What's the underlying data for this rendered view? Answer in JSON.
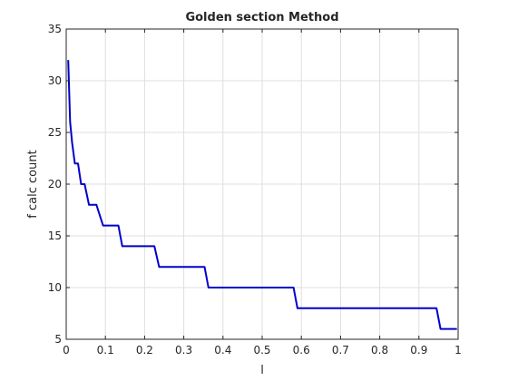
{
  "chart_data": {
    "type": "line",
    "title": "Golden section Method",
    "xlabel": "l",
    "ylabel": "f calc count",
    "xlim": [
      0,
      1
    ],
    "ylim": [
      5,
      35
    ],
    "xticks": [
      0,
      0.1,
      0.2,
      0.3,
      0.4,
      0.5,
      0.6,
      0.7,
      0.8,
      0.9,
      1
    ],
    "xtick_labels": [
      "0",
      "0.1",
      "0.2",
      "0.3",
      "0.4",
      "0.5",
      "0.6",
      "0.7",
      "0.8",
      "0.9",
      "1"
    ],
    "yticks": [
      5,
      10,
      15,
      20,
      25,
      30,
      35
    ],
    "ytick_labels": [
      "5",
      "10",
      "15",
      "20",
      "25",
      "30",
      "35"
    ],
    "grid": true,
    "series": [
      {
        "color": "#0000cc",
        "points": [
          [
            0.005,
            32
          ],
          [
            0.01,
            26
          ],
          [
            0.015,
            24
          ],
          [
            0.022,
            22
          ],
          [
            0.03,
            22
          ],
          [
            0.038,
            20
          ],
          [
            0.047,
            20
          ],
          [
            0.058,
            18
          ],
          [
            0.077,
            18
          ],
          [
            0.094,
            16
          ],
          [
            0.133,
            16
          ],
          [
            0.143,
            14
          ],
          [
            0.225,
            14
          ],
          [
            0.237,
            12
          ],
          [
            0.353,
            12
          ],
          [
            0.363,
            10
          ],
          [
            0.58,
            10
          ],
          [
            0.59,
            8
          ],
          [
            0.945,
            8
          ],
          [
            0.955,
            6
          ],
          [
            0.997,
            6
          ]
        ]
      }
    ]
  }
}
